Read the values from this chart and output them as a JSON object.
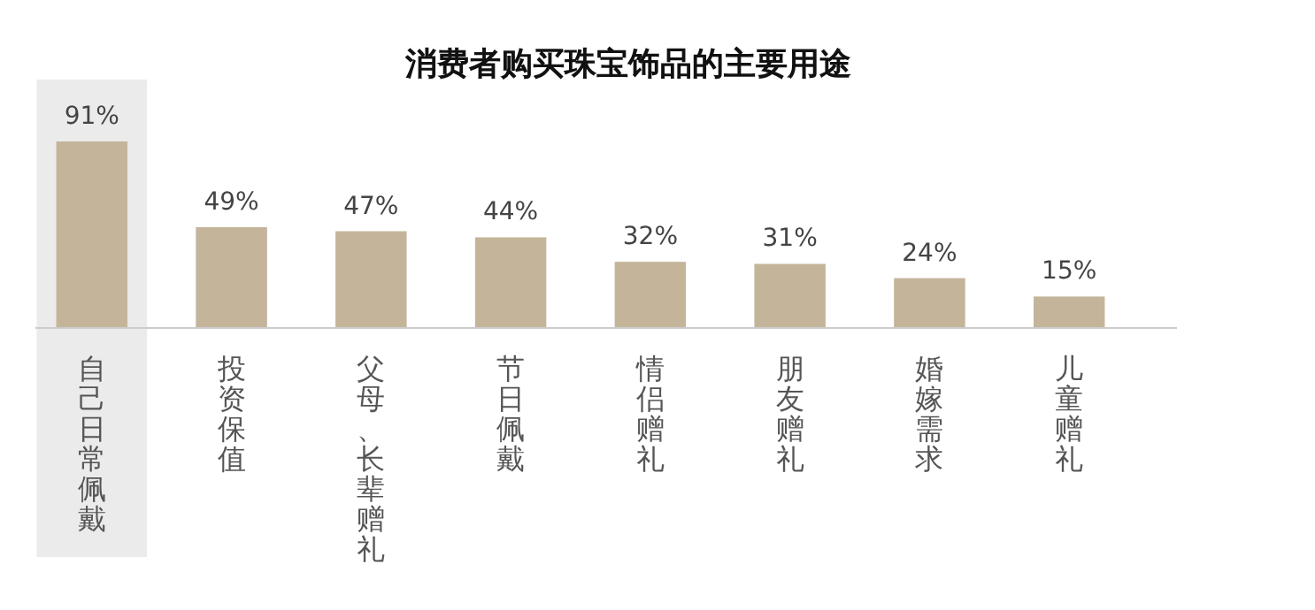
{
  "chart_data": {
    "type": "bar",
    "title": "消费者购买珠宝饰品的主要用途",
    "categories": [
      "自己日常佩戴",
      "投资保值",
      "父母、长辈赠礼",
      "节日佩戴",
      "情侣赠礼",
      "朋友赠礼",
      "婚嫁需求",
      "儿童赠礼"
    ],
    "values": [
      91,
      49,
      47,
      44,
      32,
      31,
      24,
      15
    ],
    "color": "#c4b59a",
    "data_labels": true,
    "value_labels": [
      "91%",
      "49%",
      "47%",
      "44%",
      "32%",
      "31%",
      "24%",
      "15%"
    ],
    "bands": [
      {
        "axis": "x",
        "from": "自己日常佩戴",
        "to": "自己日常佩戴",
        "color": "#ebebeb"
      }
    ]
  }
}
